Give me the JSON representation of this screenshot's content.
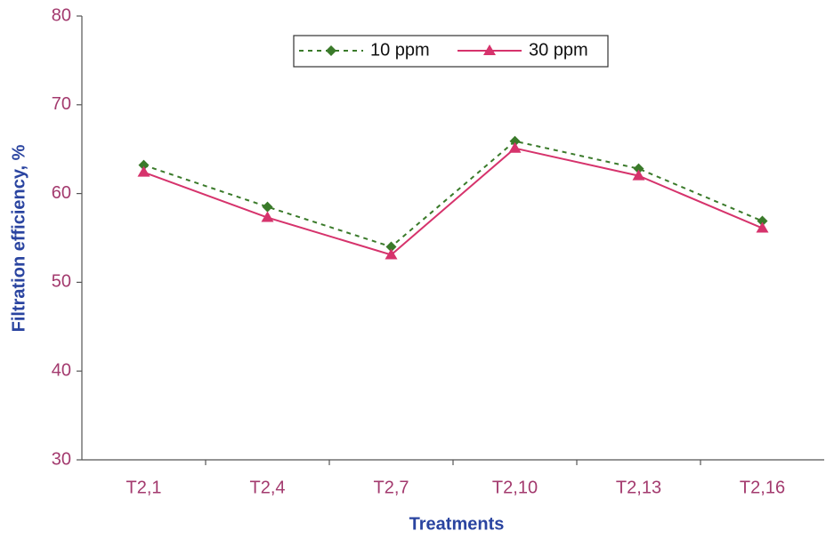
{
  "chart_data": {
    "type": "line",
    "x_label": "Treatments",
    "y_label": "Filtration efficiency, %",
    "categories": [
      "T2,1",
      "T2,4",
      "T2,7",
      "T2,10",
      "T2,13",
      "T2,16"
    ],
    "series": [
      {
        "name": "10 ppm",
        "color": "#3a7a2a",
        "values": [
          63.2,
          58.5,
          54,
          65.9,
          62.8,
          56.9
        ]
      },
      {
        "name": "30 ppm",
        "color": "#d6336c",
        "values": [
          62.4,
          57.3,
          53.1,
          65.1,
          62,
          56.1
        ]
      }
    ],
    "ylim": [
      30,
      80
    ],
    "yticks": [
      30,
      40,
      50,
      60,
      70,
      80
    ]
  }
}
